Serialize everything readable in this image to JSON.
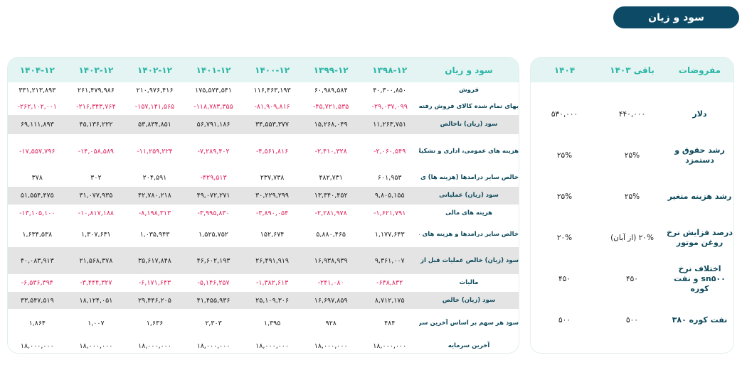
{
  "title": "سود و زیان",
  "pl": {
    "header": [
      "سود و زیان",
      "۱۳۹۸-۱۲",
      "۱۳۹۹-۱۲",
      "۱۴۰۰-۱۲",
      "۱۴۰۱-۱۲",
      "۱۴۰۲-۱۲",
      "۱۴۰۳-۱۲",
      "۱۴۰۴-۱۲"
    ],
    "rows": [
      {
        "label": "فروش",
        "values": [
          "۴۰,۳۰۰,۸۵۰",
          "۶۰,۹۸۹,۵۸۴",
          "۱۱۶,۴۶۳,۱۹۳",
          "۱۷۵,۵۷۴,۵۴۱",
          "۲۱۰,۹۷۶,۴۱۶",
          "۲۶۱,۴۷۹,۹۸۶",
          "۳۳۱,۲۱۳,۸۹۳"
        ]
      },
      {
        "label": "بهای تمام شده کالای فروش رفته",
        "values": [
          "-۲۹,۰۳۷,۰۹۹",
          "-۴۵,۷۲۱,۵۳۵",
          "-۸۱,۹۰۹,۸۱۶",
          "-۱۱۸,۷۸۳,۳۵۵",
          "-۱۵۷,۱۴۱,۵۶۵",
          "-۲۱۶,۳۴۳,۷۶۴",
          "-۲۶۲,۱۰۲,۰۰۱"
        ]
      },
      {
        "label": "سود (زیان) ناخالص",
        "values": [
          "۱۱,۲۶۳,۷۵۱",
          "۱۵,۲۶۸,۰۴۹",
          "۳۴,۵۵۳,۳۷۷",
          "۵۶,۷۹۱,۱۸۶",
          "۵۳,۸۳۴,۸۵۱",
          "۴۵,۱۳۶,۲۲۲",
          "۶۹,۱۱۱,۸۹۳"
        ]
      },
      {
        "label": "هزینه های عمومی، اداری و تشکیلاتی",
        "values": [
          "-۲,۰۶۰,۵۴۹",
          "-۲,۴۱۰,۳۲۸",
          "-۴,۵۶۱,۸۱۶",
          "-۷,۲۸۹,۴۰۲",
          "-۱۱,۲۵۹,۲۲۴",
          "-۱۴,۰۵۸,۵۸۹",
          "-۱۷,۵۵۷,۷۹۶"
        ]
      },
      {
        "label": "خالص سایر درامدها (هزینه ها) ی عملیاتی",
        "values": [
          "۶۰۱,۹۵۳",
          "۴۸۲,۷۳۱",
          "۲۳۷,۷۳۸",
          "-۴۲۹,۵۱۳",
          "۲۰۴,۵۹۱",
          "۳۰۲",
          "۳۷۸"
        ]
      },
      {
        "label": "سود (زیان) عملیاتی",
        "values": [
          "۹,۸۰۵,۱۵۵",
          "۱۳,۳۴۰,۴۵۲",
          "۳۰,۲۲۹,۲۹۹",
          "۴۹,۰۷۲,۲۷۱",
          "۴۲,۷۸۰,۲۱۸",
          "۳۱,۰۷۷,۹۳۵",
          "۵۱,۵۵۴,۴۷۵"
        ]
      },
      {
        "label": "هزینه های مالی",
        "values": [
          "-۱,۶۲۱,۷۹۱",
          "-۲,۲۸۱,۹۷۸",
          "-۳,۸۹۰,۰۵۴",
          "-۳,۹۹۵,۸۳۰",
          "-۸,۱۹۸,۳۱۳",
          "-۱۰,۸۱۷,۱۸۸",
          "-۱۳,۱۰۵,۱۰۰"
        ]
      },
      {
        "label": "خالص سایر درامدها و هزینه های غیرعملیاتی",
        "values": [
          "۱,۱۷۷,۶۴۳",
          "۵,۸۸۰,۴۶۵",
          "۱۵۲,۶۷۴",
          "۱,۵۲۵,۷۵۲",
          "۱,۰۳۵,۹۴۳",
          "۱,۳۰۷,۶۳۱",
          "۱,۶۳۴,۵۳۸"
        ]
      },
      {
        "label": "سود (زیان) خالص عملیات قبل از مالیات",
        "values": [
          "۹,۳۶۱,۰۰۷",
          "۱۶,۹۳۸,۹۳۹",
          "۲۶,۴۹۱,۹۱۹",
          "۴۶,۶۰۲,۱۹۳",
          "۳۵,۶۱۷,۸۴۸",
          "۲۱,۵۶۸,۳۷۸",
          "۴۰,۰۸۳,۹۱۳"
        ]
      },
      {
        "label": "مالیات",
        "values": [
          "-۶۴۸,۸۳۲",
          "-۲۴۱,۰۸۰",
          "-۱,۳۸۲,۶۱۳",
          "-۵,۱۴۶,۲۵۷",
          "-۶,۱۷۱,۶۴۳",
          "-۳,۴۴۴,۳۲۷",
          "-۶,۵۳۶,۳۹۴"
        ]
      },
      {
        "label": "سود (زیان) خالص",
        "values": [
          "۸,۷۱۲,۱۷۵",
          "۱۶,۶۹۷,۸۵۹",
          "۲۵,۱۰۹,۳۰۶",
          "۴۱,۴۵۵,۹۳۶",
          "۲۹,۴۴۶,۲۰۵",
          "۱۸,۱۲۴,۰۵۱",
          "۳۳,۵۴۷,۵۱۹"
        ]
      },
      {
        "label": "سود هر سهم بر اساس آخرین سرمایه",
        "values": [
          "۴۸۴",
          "۹۲۸",
          "۱,۳۹۵",
          "۲,۳۰۳",
          "۱,۶۳۶",
          "۱,۰۰۷",
          "۱,۸۶۴"
        ]
      },
      {
        "label": "آخرین سرمایه",
        "values": [
          "۱۸,۰۰۰,۰۰۰",
          "۱۸,۰۰۰,۰۰۰",
          "۱۸,۰۰۰,۰۰۰",
          "۱۸,۰۰۰,۰۰۰",
          "۱۸,۰۰۰,۰۰۰",
          "۱۸,۰۰۰,۰۰۰",
          "۱۸,۰۰۰,۰۰۰"
        ]
      }
    ]
  },
  "assumptions": {
    "header": [
      "مفروضات",
      "باقی ۱۴۰۳",
      "۱۴۰۴"
    ],
    "rows": [
      {
        "label": "دلار",
        "values": [
          "۴۴۰,۰۰۰",
          "۵۳۰,۰۰۰"
        ]
      },
      {
        "label": "رشد حقوق و دستمزد",
        "values": [
          "۲۵%",
          "۲۵%"
        ]
      },
      {
        "label": "رشد هزینه متغیر",
        "values": [
          "۲۵%",
          "۲۵%"
        ]
      },
      {
        "label": "درصد فزایش نرخ روغن موتور",
        "values": [
          "۲۰% (از آبان)",
          "۲۰%"
        ]
      },
      {
        "label": "اختلاف نرخ sn۵۰۰ و نفت کوره",
        "values": [
          "۴۵۰",
          "۴۵۰"
        ]
      },
      {
        "label": "نفت کوره ۳۸۰",
        "values": [
          "۵۰۰",
          "۵۰۰"
        ]
      }
    ]
  },
  "colors": {
    "brand": "#0c4a66",
    "header_text": "#2bb5a5",
    "negative": "#e0245e",
    "label": "#0e4a5c"
  }
}
